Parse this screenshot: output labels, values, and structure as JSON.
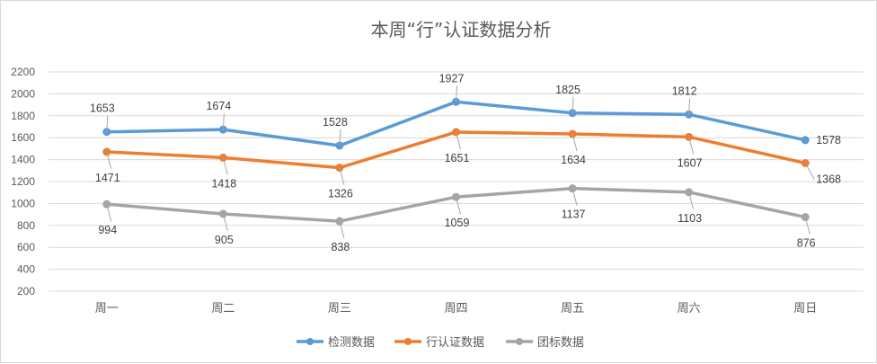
{
  "chart_data": {
    "type": "line",
    "title": "本周“行”认证数据分析",
    "categories": [
      "周一",
      "周二",
      "周三",
      "周四",
      "周五",
      "周六",
      "周日"
    ],
    "yticks": [
      200,
      400,
      600,
      800,
      1000,
      1200,
      1400,
      1600,
      1800,
      2000,
      2200
    ],
    "ylim": [
      200,
      2200
    ],
    "grid": true,
    "legend_position": "bottom",
    "series": [
      {
        "name": "检测数据",
        "color": "#5b9bd5",
        "values": [
          1653,
          1674,
          1528,
          1927,
          1825,
          1812,
          1578
        ],
        "label_pos": [
          "above",
          "above",
          "above",
          "above",
          "above",
          "above",
          "right"
        ]
      },
      {
        "name": "行认证数据",
        "color": "#ed7d31",
        "values": [
          1471,
          1418,
          1326,
          1651,
          1634,
          1607,
          1368
        ],
        "label_pos": [
          "below",
          "below",
          "below",
          "below",
          "below",
          "below",
          "right"
        ]
      },
      {
        "name": "团标数据",
        "color": "#a5a5a5",
        "values": [
          994,
          905,
          838,
          1059,
          1137,
          1103,
          876
        ],
        "label_pos": [
          "below",
          "below",
          "below",
          "below",
          "below",
          "below",
          "below"
        ]
      }
    ]
  }
}
